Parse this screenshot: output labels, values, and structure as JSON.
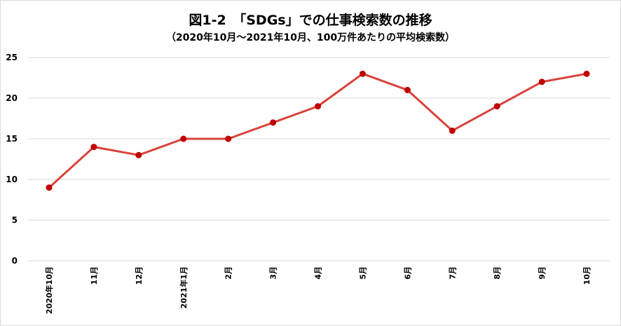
{
  "chart_data": {
    "type": "line",
    "title": "図1-2　「SDGs」での仕事検索数の推移",
    "subtitle": "（2020年10月～2021年10月、100万件あたりの平均検索数）",
    "categories": [
      "2020年10月",
      "11月",
      "12月",
      "2021年1月",
      "2月",
      "3月",
      "4月",
      "5月",
      "6月",
      "7月",
      "8月",
      "9月",
      "10月"
    ],
    "series": [
      {
        "values": [
          9,
          14,
          13,
          15,
          15,
          17,
          19,
          23,
          21,
          16,
          19,
          22,
          23
        ]
      }
    ],
    "ylim": [
      0,
      25
    ],
    "yticks": [
      0,
      5,
      10,
      15,
      20,
      25
    ],
    "grid": true,
    "line_color": "#d9413b",
    "marker_color": "#c00000",
    "grid_color": "#d9d9d9"
  }
}
